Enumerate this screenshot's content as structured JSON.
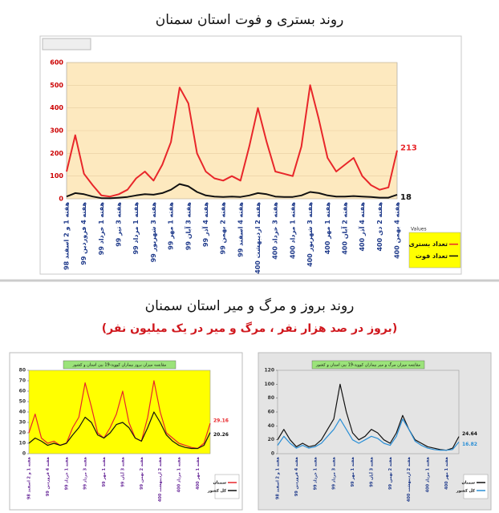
{
  "chart_data": [
    {
      "type": "line",
      "title": "روند بستری و فوت استان سمنان",
      "ylim": [
        0,
        600
      ],
      "yticks": [
        0,
        100,
        200,
        300,
        400,
        500,
        600
      ],
      "grid": true,
      "legend_title": "Values",
      "categories": [
        "هفته 1 و 2 اسفند 98",
        null,
        "هفته 4 فروردین 99",
        null,
        "هفته 1 خرداد 99",
        null,
        "هفته 3 تیر 99",
        null,
        "هفته 1 مرداد 99",
        null,
        "هفته 3 شهریور 99",
        null,
        "هفته 1 مهر 99",
        null,
        "هفته 3 آبان 99",
        null,
        "هفته 4 آذر 99",
        null,
        "هفته 2 بهمن 99",
        null,
        "هفته 4 اسفند 99",
        null,
        "هفته 2 اردیبهشت 400",
        null,
        "هفته 3 خرداد 400",
        null,
        "هفته 1 مرداد 400",
        null,
        "هفته 3 شهریور 400",
        null,
        "هفته 1 مهر 400",
        null,
        "هفته 2 آبان 400",
        null,
        "هفته 4 آذر 400",
        null,
        "هفته 2 دی 400",
        null,
        "هفته 4 بهمن 400"
      ],
      "series": [
        {
          "name": "تعداد بستری",
          "color": "#e8262a",
          "values": [
            120,
            280,
            110,
            60,
            15,
            10,
            20,
            40,
            90,
            120,
            80,
            150,
            250,
            490,
            420,
            200,
            120,
            90,
            80,
            100,
            80,
            230,
            400,
            250,
            120,
            110,
            100,
            230,
            500,
            350,
            180,
            120,
            150,
            180,
            100,
            60,
            40,
            50,
            213
          ]
        },
        {
          "name": "تعداد فوت",
          "color": "#111111",
          "values": [
            10,
            25,
            20,
            10,
            3,
            2,
            5,
            8,
            15,
            20,
            18,
            25,
            40,
            65,
            55,
            30,
            15,
            10,
            8,
            10,
            8,
            15,
            25,
            20,
            10,
            8,
            8,
            15,
            30,
            25,
            15,
            10,
            10,
            12,
            10,
            8,
            5,
            5,
            18
          ]
        }
      ]
    },
    {
      "type": "line",
      "title": "مقایسه میزان بروز بیماران کووید-19 بین استان و کشور",
      "ylim": [
        0,
        80
      ],
      "yticks": [
        0,
        10,
        20,
        30,
        40,
        50,
        60,
        70,
        80
      ],
      "grid": false,
      "categories": [
        "هفته 1 و 2 اسفند 98",
        null,
        null,
        "هفته 4 فروردین 99",
        null,
        null,
        "هفته 1 خرداد 99",
        null,
        null,
        "هفته 3 مرداد 99",
        null,
        null,
        "هفته 1 مهر 99",
        null,
        null,
        "هفته 3 آبان 99",
        null,
        null,
        "هفته 2 بهمن 99",
        null,
        null,
        "هفته 2 اردیبهشت 400",
        null,
        null,
        "هفته 1 مرداد 400",
        null,
        null,
        "هفته 1 مهر 400",
        null,
        null
      ],
      "series": [
        {
          "name": "سمنان",
          "color": "#e8262a",
          "values": [
            20,
            38,
            15,
            10,
            12,
            8,
            10,
            25,
            35,
            68,
            45,
            20,
            15,
            25,
            38,
            60,
            30,
            15,
            12,
            35,
            70,
            40,
            20,
            15,
            10,
            8,
            6,
            5,
            10,
            29.16
          ]
        },
        {
          "name": "کل کشور",
          "color": "#111111",
          "values": [
            10,
            15,
            12,
            8,
            10,
            8,
            10,
            18,
            25,
            35,
            30,
            18,
            15,
            20,
            28,
            30,
            25,
            15,
            12,
            25,
            40,
            30,
            18,
            12,
            8,
            6,
            5,
            5,
            8,
            20.26
          ]
        }
      ]
    },
    {
      "type": "line",
      "title": "مقایسه میزان مرگ و میر بیماران کووید-19 بین استان و کشور",
      "ylim": [
        0,
        120
      ],
      "yticks": [
        0,
        20,
        40,
        60,
        80,
        100,
        120
      ],
      "grid": false,
      "categories": [
        "هفته 1 و 2 اسفند 98",
        null,
        null,
        "هفته 4 فروردین 99",
        null,
        null,
        "هفته 1 خرداد 99",
        null,
        null,
        "هفته 3 مرداد 99",
        null,
        null,
        "هفته 1 مهر 99",
        null,
        null,
        "هفته 3 آبان 99",
        null,
        null,
        "هفته 2 بهمن 99",
        null,
        null,
        "هفته 2 اردیبهشت 400",
        null,
        null,
        "هفته 1 مرداد 400",
        null,
        null,
        "هفته 1 مهر 400",
        null,
        null
      ],
      "series": [
        {
          "name": "سمنان",
          "color": "#111111",
          "values": [
            20,
            35,
            20,
            10,
            15,
            10,
            12,
            20,
            35,
            50,
            100,
            60,
            30,
            20,
            25,
            35,
            30,
            20,
            15,
            30,
            55,
            35,
            20,
            15,
            10,
            8,
            6,
            5,
            8,
            24.64
          ]
        },
        {
          "name": "کل کشور",
          "color": "#2a8fd6",
          "values": [
            12,
            25,
            15,
            8,
            12,
            8,
            10,
            15,
            25,
            35,
            50,
            35,
            20,
            15,
            20,
            25,
            22,
            15,
            12,
            25,
            50,
            35,
            18,
            12,
            8,
            6,
            5,
            5,
            6,
            16.82
          ]
        }
      ]
    }
  ],
  "header": {
    "title": "روند بروز و مرگ و میر استان سمنان",
    "subtitle": "(بروز در صد هزار نفر ، مرگ و میر در یک میلیون نفر)"
  }
}
